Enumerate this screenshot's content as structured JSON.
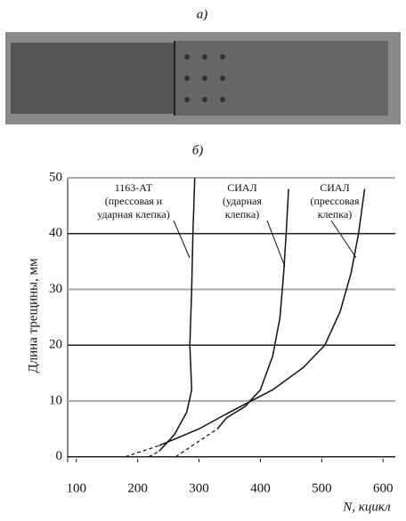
{
  "panel_a": {
    "label": "а)"
  },
  "chart_data": {
    "type": "line",
    "panel_label": "б)",
    "y_label": "Длина трещины, мм",
    "x_label": "N, кцикл",
    "xlim": [
      80,
      620
    ],
    "ylim": [
      -1,
      50
    ],
    "xticks": [
      100,
      200,
      300,
      400,
      500,
      600
    ],
    "yticks": [
      0,
      10,
      20,
      30,
      40,
      50
    ],
    "grid": true,
    "series": [
      {
        "name": [
          "1163-АТ",
          "(прессовая и",
          "ударная клепка)"
        ],
        "color": "#111111",
        "x": [
          235,
          260,
          280,
          288,
          285,
          288,
          290,
          293
        ],
        "values": [
          1,
          4,
          8,
          12,
          20,
          30,
          40,
          50
        ],
        "extrapolation": {
          "x": [
            218,
            235
          ],
          "values": [
            0,
            1
          ]
        }
      },
      {
        "name": [
          "СИАЛ",
          "(ударная",
          "клепка)"
        ],
        "color": "#111111",
        "x": [
          330,
          345,
          375,
          400,
          420,
          432,
          438,
          442,
          446
        ],
        "values": [
          5,
          7,
          9,
          12,
          18,
          25,
          33,
          40,
          48
        ],
        "extrapolation": {
          "x": [
            262,
            330
          ],
          "values": [
            0,
            5
          ]
        }
      },
      {
        "name": [
          "СИАЛ",
          "(прессовая",
          "клепка)"
        ],
        "color": "#111111",
        "x": [
          235,
          300,
          350,
          420,
          470,
          505,
          530,
          548,
          560,
          570
        ],
        "values": [
          2,
          5,
          8,
          12,
          16,
          20,
          26,
          33,
          40,
          48
        ],
        "extrapolation": {
          "x": [
            180,
            235
          ],
          "values": [
            0,
            2
          ]
        }
      }
    ]
  }
}
